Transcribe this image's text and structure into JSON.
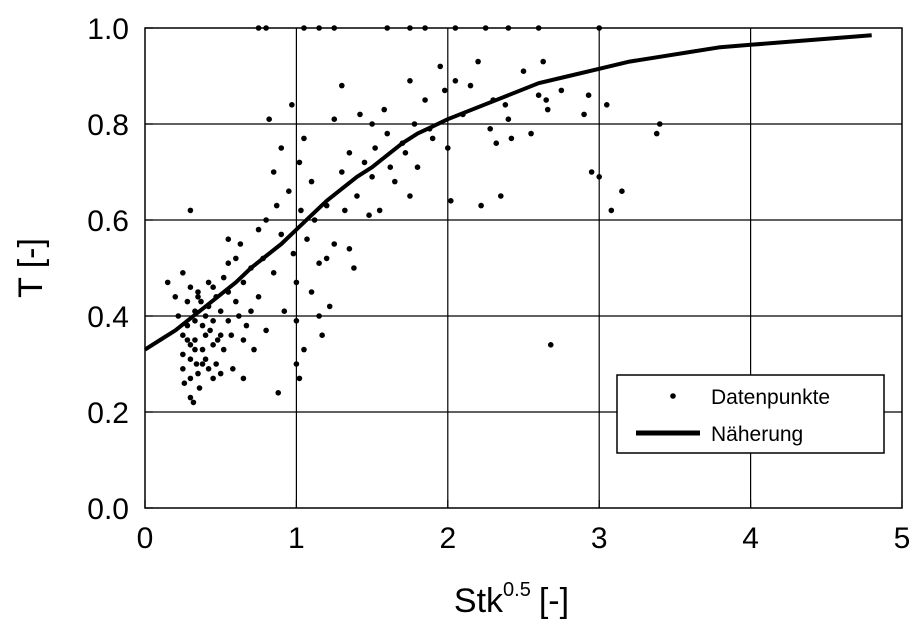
{
  "chart_data": {
    "type": "scatter",
    "xlabel_main": "Stk",
    "xlabel_sup": "0.5",
    "xlabel_unit": "[-]",
    "ylabel": "T [-]",
    "xlim": [
      0,
      5
    ],
    "ylim": [
      0.0,
      1.0
    ],
    "xticks": [
      "0",
      "1",
      "2",
      "3",
      "4",
      "5"
    ],
    "yticks": [
      "0.0",
      "0.2",
      "0.4",
      "0.6",
      "0.8",
      "1.0"
    ],
    "grid": true,
    "legend_position": "bottom-right",
    "series": [
      {
        "name": "Datenpunkte",
        "kind": "points",
        "points": [
          [
            0.15,
            0.47
          ],
          [
            0.2,
            0.44
          ],
          [
            0.22,
            0.4
          ],
          [
            0.25,
            0.49
          ],
          [
            0.25,
            0.36
          ],
          [
            0.25,
            0.32
          ],
          [
            0.25,
            0.29
          ],
          [
            0.26,
            0.26
          ],
          [
            0.28,
            0.43
          ],
          [
            0.28,
            0.38
          ],
          [
            0.3,
            0.46
          ],
          [
            0.3,
            0.34
          ],
          [
            0.3,
            0.31
          ],
          [
            0.3,
            0.27
          ],
          [
            0.3,
            0.23
          ],
          [
            0.32,
            0.22
          ],
          [
            0.33,
            0.41
          ],
          [
            0.33,
            0.39
          ],
          [
            0.33,
            0.35
          ],
          [
            0.34,
            0.3
          ],
          [
            0.35,
            0.44
          ],
          [
            0.35,
            0.28
          ],
          [
            0.36,
            0.25
          ],
          [
            0.37,
            0.43
          ],
          [
            0.38,
            0.38
          ],
          [
            0.38,
            0.33
          ],
          [
            0.4,
            0.4
          ],
          [
            0.4,
            0.36
          ],
          [
            0.4,
            0.31
          ],
          [
            0.42,
            0.42
          ],
          [
            0.42,
            0.29
          ],
          [
            0.43,
            0.37
          ],
          [
            0.45,
            0.46
          ],
          [
            0.45,
            0.39
          ],
          [
            0.45,
            0.34
          ],
          [
            0.47,
            0.44
          ],
          [
            0.47,
            0.3
          ],
          [
            0.5,
            0.41
          ],
          [
            0.5,
            0.36
          ],
          [
            0.5,
            0.28
          ],
          [
            0.52,
            0.48
          ],
          [
            0.52,
            0.33
          ],
          [
            0.55,
            0.45
          ],
          [
            0.55,
            0.39
          ],
          [
            0.55,
            0.56
          ],
          [
            0.57,
            0.36
          ],
          [
            0.58,
            0.29
          ],
          [
            0.6,
            0.52
          ],
          [
            0.6,
            0.43
          ],
          [
            0.62,
            0.4
          ],
          [
            0.63,
            0.55
          ],
          [
            0.65,
            0.47
          ],
          [
            0.65,
            0.35
          ],
          [
            0.67,
            0.38
          ],
          [
            0.7,
            0.5
          ],
          [
            0.7,
            0.41
          ],
          [
            0.72,
            0.33
          ],
          [
            0.75,
            0.58
          ],
          [
            0.75,
            0.44
          ],
          [
            0.78,
            0.52
          ],
          [
            0.8,
            0.6
          ],
          [
            0.8,
            0.37
          ],
          [
            0.82,
            0.81
          ],
          [
            0.85,
            0.49
          ],
          [
            0.85,
            0.7
          ],
          [
            0.87,
            0.63
          ],
          [
            0.88,
            0.24
          ],
          [
            0.9,
            0.75
          ],
          [
            0.9,
            0.57
          ],
          [
            0.92,
            0.41
          ],
          [
            0.95,
            0.66
          ],
          [
            0.97,
            0.84
          ],
          [
            0.98,
            0.53
          ],
          [
            1.0,
            0.47
          ],
          [
            1.0,
            0.39
          ],
          [
            1.0,
            0.3
          ],
          [
            1.02,
            0.27
          ],
          [
            1.02,
            0.72
          ],
          [
            1.03,
            0.62
          ],
          [
            1.05,
            0.77
          ],
          [
            1.05,
            0.33
          ],
          [
            1.07,
            0.56
          ],
          [
            1.1,
            0.68
          ],
          [
            1.1,
            0.45
          ],
          [
            1.12,
            0.6
          ],
          [
            1.15,
            0.51
          ],
          [
            1.15,
            0.4
          ],
          [
            1.17,
            0.36
          ],
          [
            1.2,
            0.63
          ],
          [
            1.2,
            0.52
          ],
          [
            1.22,
            0.42
          ],
          [
            1.25,
            0.81
          ],
          [
            1.25,
            0.55
          ],
          [
            1.3,
            0.88
          ],
          [
            1.3,
            0.7
          ],
          [
            1.32,
            0.62
          ],
          [
            1.35,
            0.74
          ],
          [
            1.35,
            0.54
          ],
          [
            1.38,
            0.5
          ],
          [
            1.4,
            0.65
          ],
          [
            1.42,
            0.82
          ],
          [
            1.45,
            0.72
          ],
          [
            1.48,
            0.61
          ],
          [
            1.5,
            0.8
          ],
          [
            1.5,
            0.69
          ],
          [
            1.52,
            0.75
          ],
          [
            1.55,
            0.62
          ],
          [
            1.58,
            0.83
          ],
          [
            1.6,
            0.78
          ],
          [
            1.62,
            0.71
          ],
          [
            1.65,
            0.68
          ],
          [
            1.7,
            0.76
          ],
          [
            1.72,
            0.74
          ],
          [
            1.75,
            0.65
          ],
          [
            1.75,
            0.89
          ],
          [
            1.78,
            0.8
          ],
          [
            1.8,
            0.71
          ],
          [
            1.85,
            0.85
          ],
          [
            1.88,
            0.79
          ],
          [
            1.9,
            0.77
          ],
          [
            1.95,
            0.92
          ],
          [
            1.98,
            0.87
          ],
          [
            2.0,
            0.75
          ],
          [
            2.02,
            0.64
          ],
          [
            2.05,
            0.89
          ],
          [
            2.1,
            0.82
          ],
          [
            2.15,
            0.88
          ],
          [
            2.2,
            0.93
          ],
          [
            2.22,
            0.63
          ],
          [
            2.28,
            0.79
          ],
          [
            2.3,
            0.85
          ],
          [
            2.32,
            0.76
          ],
          [
            2.35,
            0.65
          ],
          [
            2.38,
            0.84
          ],
          [
            2.4,
            0.81
          ],
          [
            2.42,
            0.77
          ],
          [
            2.5,
            0.91
          ],
          [
            2.55,
            0.78
          ],
          [
            2.6,
            0.86
          ],
          [
            2.63,
            0.93
          ],
          [
            2.65,
            0.85
          ],
          [
            2.66,
            0.83
          ],
          [
            2.68,
            0.34
          ],
          [
            2.75,
            0.87
          ],
          [
            2.9,
            0.82
          ],
          [
            2.93,
            0.86
          ],
          [
            2.95,
            0.7
          ],
          [
            3.0,
            0.69
          ],
          [
            3.05,
            0.84
          ],
          [
            3.08,
            0.62
          ],
          [
            3.15,
            0.66
          ],
          [
            3.38,
            0.78
          ],
          [
            3.4,
            0.8
          ],
          [
            3.0,
            1.0
          ],
          [
            2.6,
            1.0
          ],
          [
            2.4,
            1.0
          ],
          [
            2.25,
            1.0
          ],
          [
            2.05,
            1.0
          ],
          [
            1.85,
            1.0
          ],
          [
            1.75,
            1.0
          ],
          [
            1.6,
            1.0
          ],
          [
            1.25,
            1.0
          ],
          [
            1.15,
            1.0
          ],
          [
            1.05,
            1.0
          ],
          [
            0.8,
            1.0
          ],
          [
            0.75,
            1.0
          ],
          [
            0.3,
            0.62
          ],
          [
            0.55,
            0.51
          ],
          [
            0.42,
            0.47
          ],
          [
            0.65,
            0.27
          ],
          [
            0.35,
            0.45
          ],
          [
            0.45,
            0.27
          ],
          [
            0.48,
            0.35
          ],
          [
            0.28,
            0.35
          ],
          [
            0.33,
            0.33
          ],
          [
            0.38,
            0.3
          ]
        ]
      },
      {
        "name": "Näherung",
        "kind": "line",
        "points": [
          [
            0,
            0.33
          ],
          [
            0.1,
            0.35
          ],
          [
            0.2,
            0.37
          ],
          [
            0.3,
            0.395
          ],
          [
            0.4,
            0.42
          ],
          [
            0.5,
            0.445
          ],
          [
            0.6,
            0.47
          ],
          [
            0.7,
            0.5
          ],
          [
            0.8,
            0.525
          ],
          [
            0.9,
            0.55
          ],
          [
            1.0,
            0.58
          ],
          [
            1.1,
            0.61
          ],
          [
            1.2,
            0.64
          ],
          [
            1.3,
            0.665
          ],
          [
            1.4,
            0.69
          ],
          [
            1.5,
            0.71
          ],
          [
            1.6,
            0.735
          ],
          [
            1.7,
            0.76
          ],
          [
            1.8,
            0.78
          ],
          [
            1.9,
            0.795
          ],
          [
            2.0,
            0.81
          ],
          [
            2.2,
            0.835
          ],
          [
            2.4,
            0.86
          ],
          [
            2.6,
            0.885
          ],
          [
            2.8,
            0.9
          ],
          [
            3.0,
            0.915
          ],
          [
            3.2,
            0.93
          ],
          [
            3.4,
            0.94
          ],
          [
            3.6,
            0.95
          ],
          [
            3.8,
            0.96
          ],
          [
            4.0,
            0.965
          ],
          [
            4.2,
            0.97
          ],
          [
            4.4,
            0.975
          ],
          [
            4.6,
            0.98
          ],
          [
            4.8,
            0.985
          ]
        ]
      }
    ]
  }
}
